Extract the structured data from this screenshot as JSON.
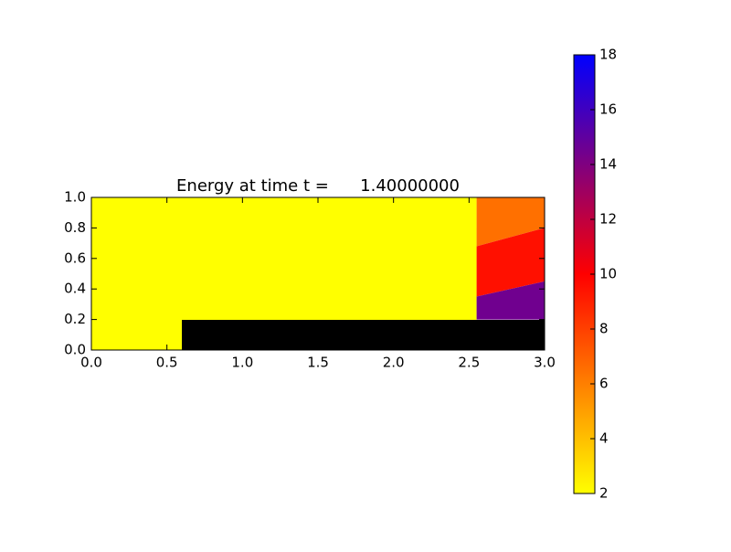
{
  "chart_data": {
    "type": "heatmap",
    "title": "Energy at time t =      1.40000000",
    "xlim": [
      0,
      3
    ],
    "ylim": [
      0,
      1
    ],
    "xticks": [
      {
        "value": 0,
        "label": "0.0"
      },
      {
        "value": 0.5,
        "label": "0.5"
      },
      {
        "value": 1,
        "label": "1.0"
      },
      {
        "value": 1.5,
        "label": "1.5"
      },
      {
        "value": 2,
        "label": "2.0"
      },
      {
        "value": 2.5,
        "label": "2.5"
      },
      {
        "value": 3,
        "label": "3.0"
      }
    ],
    "yticks": [
      {
        "value": 0,
        "label": "0.0"
      },
      {
        "value": 0.2,
        "label": "0.2"
      },
      {
        "value": 0.4,
        "label": "0.4"
      },
      {
        "value": 0.6,
        "label": "0.6"
      },
      {
        "value": 0.8,
        "label": "0.8"
      },
      {
        "value": 1,
        "label": "1.0"
      }
    ],
    "colormap": [
      "#ffff00",
      "#ff0000",
      "#0000ff"
    ],
    "clim": [
      2,
      18
    ],
    "cticks": [
      2,
      4,
      6,
      8,
      10,
      12,
      14,
      16,
      18
    ],
    "regions": [
      {
        "value": 2,
        "points": [
          [
            0,
            0
          ],
          [
            2.55,
            0
          ],
          [
            2.55,
            1
          ],
          [
            0,
            1
          ]
        ]
      },
      {
        "value": 6.5,
        "points": [
          [
            2.55,
            0.68
          ],
          [
            3,
            0.8
          ],
          [
            3,
            1
          ],
          [
            2.55,
            1
          ]
        ]
      },
      {
        "value": 9.5,
        "points": [
          [
            2.55,
            0.35
          ],
          [
            3,
            0.45
          ],
          [
            3,
            0.8
          ],
          [
            2.55,
            0.68
          ]
        ]
      },
      {
        "value": 14.5,
        "points": [
          [
            2.55,
            0.2
          ],
          [
            3,
            0.2
          ],
          [
            3,
            0.45
          ],
          [
            2.55,
            0.35
          ]
        ]
      }
    ]
  }
}
